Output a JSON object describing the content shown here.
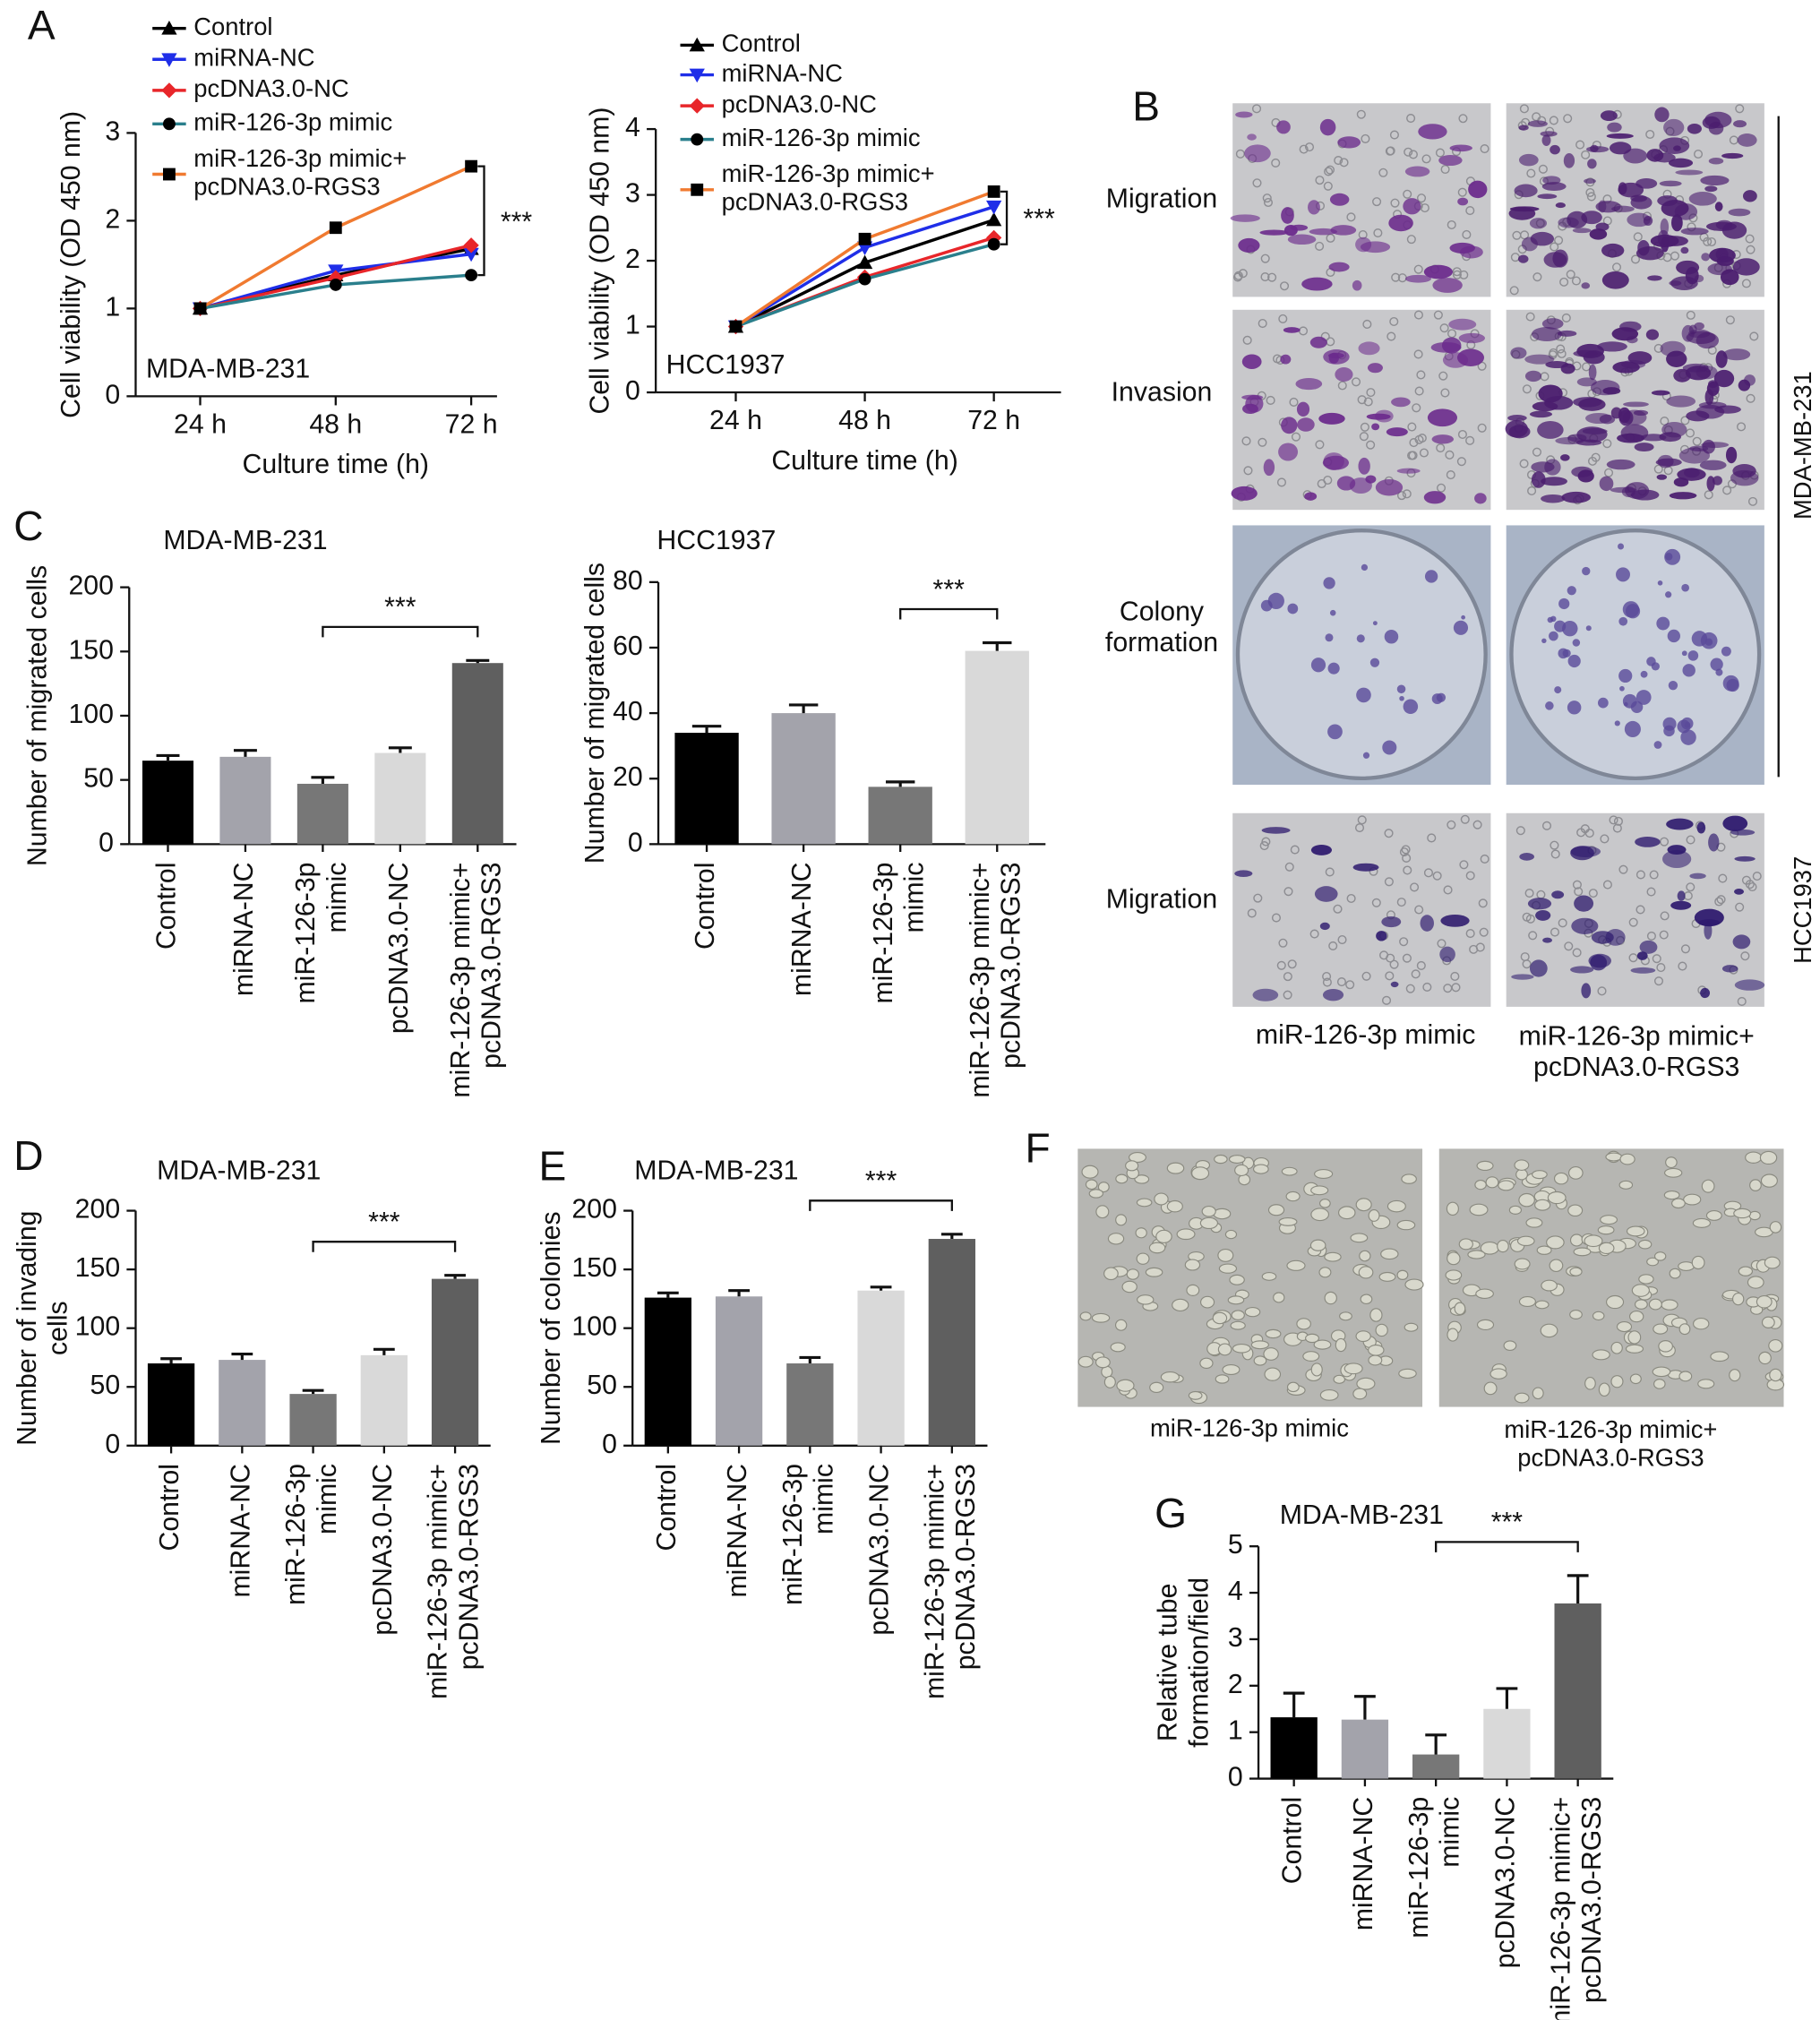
{
  "panel_labels": [
    "A",
    "B",
    "C",
    "D",
    "E",
    "F",
    "G"
  ],
  "figure_images": {
    "B": {
      "row_labels": [
        "Migration",
        "Invasion",
        "Colony\nformation",
        "Migration"
      ],
      "cell_lines": [
        "MDA-MB-231",
        "HCC1937"
      ],
      "column_labels": [
        "miR-126-3p mimic",
        "miR-126-3p mimic+\npcDNA3.0-RGS3"
      ]
    },
    "F": {
      "column_labels": [
        "miR-126-3p mimic",
        "miR-126-3p mimic+\npcDNA3.0-RGS3"
      ]
    }
  },
  "chart_data": [
    {
      "type": "line",
      "annotation": "MDA-MB-231",
      "ylabel": "Cell viability (OD 450 nm)",
      "xlabel": "Culture time (h)",
      "categories": [
        "24 h",
        "48 h",
        "72 h"
      ],
      "ylim": [
        0,
        3
      ],
      "yticks": [
        0,
        1,
        2,
        3
      ],
      "series": [
        {
          "name": "Control",
          "color": "#000000",
          "marker": "triangle-up",
          "marker_color": "#000000",
          "values": [
            1,
            1.38,
            1.68
          ]
        },
        {
          "name": "miRNA-NC",
          "color": "#1f2ee8",
          "marker": "triangle-down",
          "marker_color": "#1f2ee8",
          "values": [
            1,
            1.43,
            1.62
          ]
        },
        {
          "name": "pcDNA3.0-NC",
          "color": "#e8262a",
          "marker": "diamond",
          "marker_color": "#e8262a",
          "values": [
            1,
            1.35,
            1.72
          ]
        },
        {
          "name": "miR-126-3p mimic",
          "color": "#2a7f8c",
          "marker": "circle",
          "marker_color": "#000000",
          "values": [
            1,
            1.27,
            1.38
          ]
        },
        {
          "name": "miR-126-3p mimic+\npcDNA3.0-RGS3",
          "color": "#f07a30",
          "marker": "square",
          "marker_color": "#000000",
          "values": [
            1,
            1.92,
            2.62
          ]
        }
      ],
      "significance": {
        "series": [
          4,
          3
        ],
        "label": "***"
      }
    },
    {
      "type": "line",
      "annotation": "HCC1937",
      "ylabel": "Cell viability (OD 450 nm)",
      "xlabel": "Culture time (h)",
      "categories": [
        "24 h",
        "48 h",
        "72 h"
      ],
      "ylim": [
        0,
        4
      ],
      "yticks": [
        0,
        1,
        2,
        3,
        4
      ],
      "series": [
        {
          "name": "Control",
          "color": "#000000",
          "marker": "triangle-up",
          "marker_color": "#000000",
          "values": [
            1,
            1.97,
            2.62
          ]
        },
        {
          "name": "miRNA-NC",
          "color": "#1f2ee8",
          "marker": "triangle-down",
          "marker_color": "#1f2ee8",
          "values": [
            1,
            2.2,
            2.82
          ]
        },
        {
          "name": "pcDNA3.0-NC",
          "color": "#e8262a",
          "marker": "diamond",
          "marker_color": "#e8262a",
          "values": [
            1,
            1.75,
            2.35
          ]
        },
        {
          "name": "miR-126-3p mimic",
          "color": "#2a7f8c",
          "marker": "circle",
          "marker_color": "#000000",
          "values": [
            1,
            1.72,
            2.25
          ]
        },
        {
          "name": "miR-126-3p mimic+\npcDNA3.0-RGS3",
          "color": "#f07a30",
          "marker": "square",
          "marker_color": "#000000",
          "values": [
            1,
            2.33,
            3.05
          ]
        }
      ],
      "significance": {
        "series": [
          4,
          3
        ],
        "label": "***"
      }
    },
    {
      "type": "bar",
      "title": "MDA-MB-231",
      "ylabel": "Number of migrated cells",
      "categories": [
        "Control",
        "miRNA-NC",
        "miR-126-3p\nmimic",
        "pcDNA3.0-NC",
        "miR-126-3p mimic+\npcDNA3.0-RGS3"
      ],
      "values": [
        65,
        68,
        47,
        71,
        141
      ],
      "errors": [
        4,
        5,
        5,
        4,
        2
      ],
      "colors": [
        "#000000",
        "#a3a3ab",
        "#777777",
        "#d9d9d9",
        "#5f5f5f"
      ],
      "ylim": [
        0,
        200
      ],
      "yticks": [
        0,
        50,
        100,
        150,
        200
      ],
      "significance": {
        "bars": [
          2,
          4
        ],
        "label": "***"
      }
    },
    {
      "type": "bar",
      "title": "HCC1937",
      "ylabel": "Number of migrated cells",
      "categories": [
        "Control",
        "miRNA-NC",
        "miR-126-3p\nmimic",
        "miR-126-3p mimic+\npcDNA3.0-RGS3"
      ],
      "values": [
        34,
        40,
        17.5,
        59
      ],
      "errors": [
        2,
        2.5,
        1.5,
        2.5
      ],
      "colors": [
        "#000000",
        "#a3a3ab",
        "#777777",
        "#d9d9d9"
      ],
      "ylim": [
        0,
        80
      ],
      "yticks": [
        0,
        20,
        40,
        60,
        80
      ],
      "significance": {
        "bars": [
          2,
          3
        ],
        "label": "***"
      }
    },
    {
      "type": "bar",
      "title": "MDA-MB-231",
      "ylabel": "Number of invading\ncells",
      "categories": [
        "Control",
        "miRNA-NC",
        "miR-126-3p\nmimic",
        "pcDNA3.0-NC",
        "miR-126-3p mimic+\npcDNA3.0-RGS3"
      ],
      "values": [
        70,
        73,
        44,
        77,
        142
      ],
      "errors": [
        4,
        5,
        3,
        5,
        3
      ],
      "colors": [
        "#000000",
        "#a3a3ab",
        "#777777",
        "#d9d9d9",
        "#5f5f5f"
      ],
      "ylim": [
        0,
        200
      ],
      "yticks": [
        0,
        50,
        100,
        150,
        200
      ],
      "significance": {
        "bars": [
          2,
          4
        ],
        "label": "***"
      }
    },
    {
      "type": "bar",
      "title": "MDA-MB-231",
      "ylabel": "Number of colonies",
      "categories": [
        "Control",
        "miRNA-NC",
        "miR-126-3p\nmimic",
        "pcDNA3.0-NC",
        "miR-126-3p mimic+\npcDNA3.0-RGS3"
      ],
      "values": [
        126,
        127,
        70,
        132,
        176
      ],
      "errors": [
        4,
        5,
        5,
        3,
        4
      ],
      "colors": [
        "#000000",
        "#a3a3ab",
        "#777777",
        "#d9d9d9",
        "#5f5f5f"
      ],
      "ylim": [
        0,
        200
      ],
      "yticks": [
        0,
        50,
        100,
        150,
        200
      ],
      "significance": {
        "bars": [
          2,
          4
        ],
        "label": "***"
      }
    },
    {
      "type": "bar",
      "title": "MDA-MB-231",
      "ylabel": "Relative tube\nformation/field",
      "categories": [
        "Control",
        "miRNA-NC",
        "miR-126-3p\nmimic",
        "pcDNA3.0-NC",
        "miR-126-3p mimic+\npcDNA3.0-RGS3"
      ],
      "values": [
        1.32,
        1.27,
        0.52,
        1.5,
        3.77
      ],
      "errors": [
        0.52,
        0.5,
        0.42,
        0.44,
        0.6
      ],
      "colors": [
        "#000000",
        "#a3a3ab",
        "#777777",
        "#d9d9d9",
        "#5f5f5f"
      ],
      "ylim": [
        0,
        5
      ],
      "yticks": [
        0,
        1,
        2,
        3,
        4,
        5
      ],
      "significance": {
        "bars": [
          2,
          4
        ],
        "label": "***"
      }
    }
  ]
}
